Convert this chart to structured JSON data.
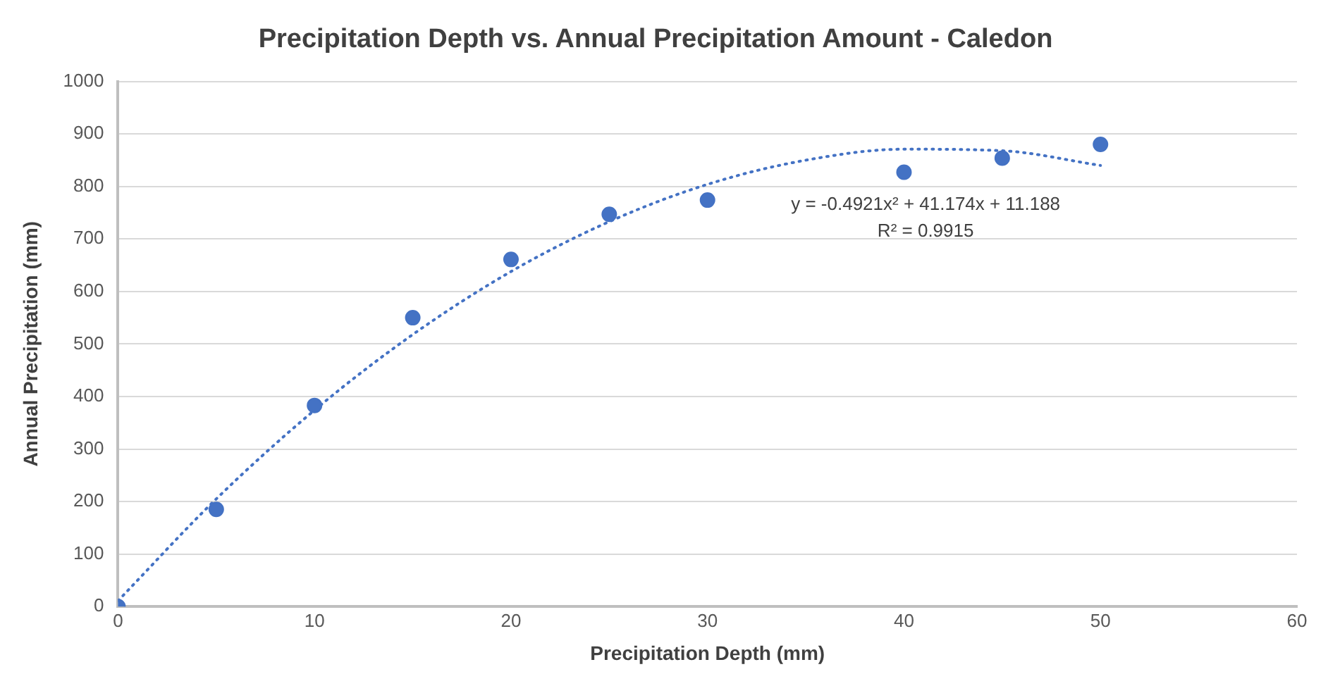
{
  "chart_data": {
    "type": "scatter",
    "title": "Precipitation Depth vs. Annual Precipitation Amount - Caledon",
    "xlabel": "Precipitation Depth (mm)",
    "ylabel": "Annual Precipitation (mm)",
    "x": [
      0,
      5,
      10,
      15,
      20,
      25,
      30,
      40,
      45,
      50
    ],
    "series": [
      {
        "color": "#4472c4",
        "values": [
          0,
          185,
          383,
          550,
          661,
          747,
          774,
          827,
          854,
          880
        ],
        "marker": "circle"
      },
      {
        "type": "line",
        "color": "#4472c4",
        "line_style": "dotted",
        "marker": "none",
        "x": [
          0,
          5,
          10,
          15,
          20,
          25,
          30,
          35,
          40,
          45,
          50
        ],
        "values": [
          11,
          205,
          374,
          518,
          638,
          733,
          804,
          850,
          871,
          868,
          840
        ]
      }
    ],
    "xlim": [
      0,
      60
    ],
    "xticks": [
      0,
      10,
      20,
      30,
      40,
      50,
      60
    ],
    "ylim": [
      0,
      1000
    ],
    "yticks": [
      0,
      100,
      200,
      300,
      400,
      500,
      600,
      700,
      800,
      900,
      1000
    ],
    "grid": "y",
    "legend": false,
    "annotations": [
      "y = -0.4921x² + 41.174x + 11.188",
      "R² = 0.9915"
    ]
  }
}
